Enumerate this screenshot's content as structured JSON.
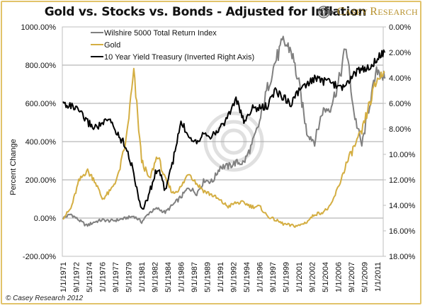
{
  "header": {
    "title": "Gold vs. Stocks vs. Bonds - Adjusted for Inflation",
    "logo_text": "CASEY RESEARCH",
    "logo_text_first": "C",
    "logo_text_rest": "ASEY ",
    "logo_text_second": "R",
    "logo_text_rest2": "ESEARCH"
  },
  "footer": {
    "copyright": "© Casey Research 2012"
  },
  "colors": {
    "wilshire": "#808080",
    "gold": "#d4ae42",
    "treasury": "#000000",
    "grid": "#a6a6a6",
    "frame": "#e2c36a"
  },
  "chart_data": {
    "type": "line",
    "title": "Gold vs. Stocks vs. Bonds - Adjusted for Inflation",
    "xlabel": "",
    "ylabel": "Percent Change",
    "y2label": "",
    "ylim": [
      -200,
      1000
    ],
    "y2lim": [
      18,
      0
    ],
    "y2_inverted": true,
    "grid": true,
    "legend_position": "top-left",
    "yticks": [
      "-200.00%",
      "0.00%",
      "200.00%",
      "400.00%",
      "600.00%",
      "800.00%",
      "1000.00%"
    ],
    "y2ticks": [
      "0.00%",
      "2.00%",
      "4.00%",
      "6.00%",
      "8.00%",
      "10.00%",
      "12.00%",
      "14.00%",
      "16.00%",
      "18.00%"
    ],
    "xticks": [
      "1/1/1971",
      "9/1/1972",
      "5/1/1974",
      "1/1/1976",
      "9/1/1977",
      "5/1/1979",
      "1/1/1981",
      "9/1/1982",
      "5/1/1984",
      "1/1/1986",
      "9/1/1987",
      "5/1/1989",
      "1/1/1991",
      "9/1/1992",
      "5/1/1994",
      "1/1/1996",
      "9/1/1997",
      "5/1/1999",
      "1/1/2001",
      "9/1/2002",
      "5/1/2004",
      "1/1/2006",
      "9/1/2007",
      "5/1/2009",
      "1/1/2011"
    ],
    "x": [
      1971,
      1972,
      1973,
      1974,
      1975,
      1976,
      1977,
      1978,
      1979,
      1980,
      1981,
      1982,
      1983,
      1984,
      1985,
      1986,
      1987,
      1988,
      1989,
      1990,
      1991,
      1992,
      1993,
      1994,
      1995,
      1996,
      1997,
      1998,
      1999,
      2000,
      2001,
      2002,
      2003,
      2004,
      2005,
      2006,
      2007,
      2008,
      2009,
      2010,
      2011,
      2011.9
    ],
    "series": [
      {
        "name": "Wilshire 5000 Total Return Index",
        "axis": "left",
        "values": [
          0,
          20,
          -10,
          -40,
          -20,
          -10,
          -15,
          -10,
          0,
          10,
          -20,
          30,
          50,
          30,
          70,
          110,
          160,
          130,
          200,
          190,
          270,
          270,
          290,
          290,
          380,
          500,
          680,
          820,
          920,
          880,
          700,
          450,
          400,
          560,
          580,
          700,
          900,
          550,
          380,
          600,
          780,
          730
        ]
      },
      {
        "name": "Gold",
        "axis": "left",
        "values": [
          0,
          50,
          190,
          250,
          200,
          100,
          140,
          220,
          400,
          760,
          300,
          200,
          330,
          200,
          130,
          160,
          240,
          180,
          140,
          120,
          90,
          60,
          80,
          80,
          60,
          60,
          10,
          -10,
          -30,
          -40,
          -40,
          -20,
          20,
          30,
          60,
          160,
          280,
          370,
          450,
          600,
          730,
          760
        ]
      },
      {
        "name": "10 Year Yield Treasury (Inverted Right Axis)",
        "axis": "right",
        "values": [
          6.0,
          6.2,
          6.6,
          7.4,
          7.9,
          7.6,
          7.3,
          8.5,
          9.3,
          11.5,
          14.5,
          13.0,
          11.0,
          12.8,
          10.5,
          7.5,
          8.5,
          9.0,
          8.2,
          8.6,
          7.9,
          7.0,
          5.6,
          7.5,
          6.4,
          6.4,
          6.2,
          5.0,
          5.5,
          6.0,
          5.0,
          4.6,
          4.0,
          4.3,
          4.2,
          4.8,
          4.6,
          3.7,
          3.3,
          3.2,
          2.4,
          2.0
        ]
      }
    ]
  }
}
